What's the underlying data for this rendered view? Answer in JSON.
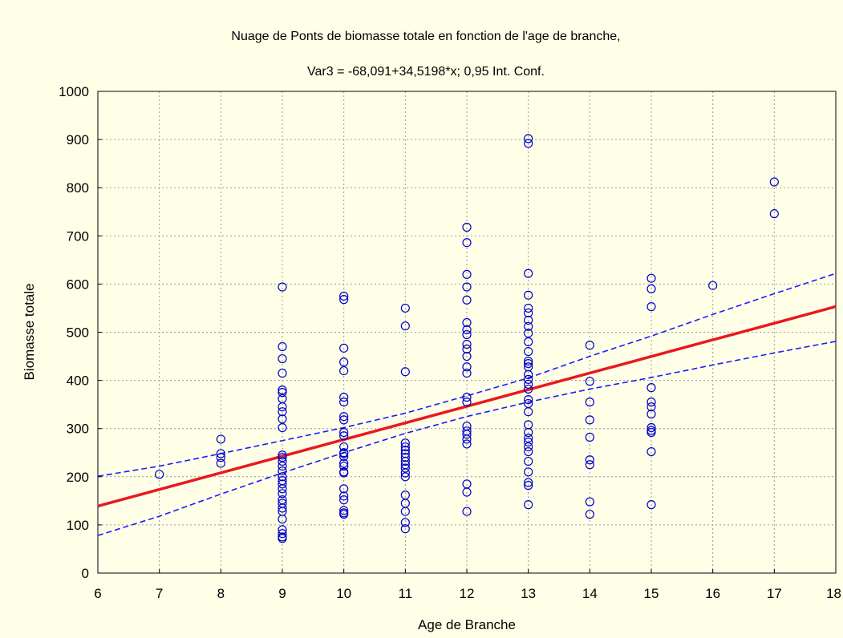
{
  "chart_data": {
    "type": "scatter",
    "title": "Nuage de Ponts de biomasse totale en fonction de l'age de branche,",
    "subtitle": "Var3 = -68,091+34,5198*x; 0,95 Int. Conf.",
    "xlabel": "Age de Branche",
    "ylabel": "Biomasse totale",
    "xlim": [
      6,
      18
    ],
    "ylim": [
      0,
      1000
    ],
    "x_ticks": [
      6,
      7,
      8,
      9,
      10,
      11,
      12,
      13,
      14,
      15,
      16,
      17,
      18
    ],
    "x_tick_labels": [
      "6",
      "7",
      "8",
      "9",
      "10",
      "11",
      "12",
      "13",
      "14",
      "15",
      "16",
      "17",
      "18"
    ],
    "y_ticks": [
      0,
      100,
      200,
      300,
      400,
      500,
      600,
      700,
      800,
      900,
      1000
    ],
    "y_tick_labels": [
      "0",
      "100",
      "200",
      "300",
      "400",
      "500",
      "600",
      "700",
      "800",
      "900",
      "1000"
    ],
    "grid": true,
    "colors": {
      "points": "#0000cc",
      "fit": "#e8191e",
      "ci": "#1a1aff",
      "background": "#ffffe8"
    },
    "regression": {
      "intercept": -68.091,
      "slope": 34.5198
    },
    "confidence_band": {
      "level": 0.95,
      "upper": [
        [
          6,
          201
        ],
        [
          7,
          222
        ],
        [
          8,
          248
        ],
        [
          9,
          275
        ],
        [
          10,
          302
        ],
        [
          11,
          332
        ],
        [
          12,
          368
        ],
        [
          13,
          405
        ],
        [
          14,
          450
        ],
        [
          15,
          492
        ],
        [
          16,
          537
        ],
        [
          17,
          580
        ],
        [
          18,
          622
        ]
      ],
      "lower": [
        [
          6,
          78
        ],
        [
          7,
          118
        ],
        [
          8,
          164
        ],
        [
          9,
          208
        ],
        [
          10,
          250
        ],
        [
          11,
          290
        ],
        [
          12,
          325
        ],
        [
          13,
          355
        ],
        [
          14,
          382
        ],
        [
          15,
          406
        ],
        [
          16,
          432
        ],
        [
          17,
          457
        ],
        [
          18,
          481
        ]
      ]
    },
    "points": [
      [
        7,
        205
      ],
      [
        8,
        278
      ],
      [
        8,
        248
      ],
      [
        8,
        240
      ],
      [
        8,
        228
      ],
      [
        9,
        594
      ],
      [
        9,
        470
      ],
      [
        9,
        445
      ],
      [
        9,
        415
      ],
      [
        9,
        380
      ],
      [
        9,
        375
      ],
      [
        9,
        362
      ],
      [
        9,
        345
      ],
      [
        9,
        335
      ],
      [
        9,
        320
      ],
      [
        9,
        302
      ],
      [
        9,
        245
      ],
      [
        9,
        240
      ],
      [
        9,
        232
      ],
      [
        9,
        222
      ],
      [
        9,
        212
      ],
      [
        9,
        200
      ],
      [
        9,
        192
      ],
      [
        9,
        185
      ],
      [
        9,
        175
      ],
      [
        9,
        165
      ],
      [
        9,
        152
      ],
      [
        9,
        145
      ],
      [
        9,
        135
      ],
      [
        9,
        128
      ],
      [
        9,
        112
      ],
      [
        9,
        90
      ],
      [
        9,
        82
      ],
      [
        9,
        75
      ],
      [
        9,
        72
      ],
      [
        10,
        575
      ],
      [
        10,
        568
      ],
      [
        10,
        467
      ],
      [
        10,
        438
      ],
      [
        10,
        420
      ],
      [
        10,
        365
      ],
      [
        10,
        355
      ],
      [
        10,
        325
      ],
      [
        10,
        318
      ],
      [
        10,
        292
      ],
      [
        10,
        285
      ],
      [
        10,
        262
      ],
      [
        10,
        250
      ],
      [
        10,
        248
      ],
      [
        10,
        242
      ],
      [
        10,
        228
      ],
      [
        10,
        222
      ],
      [
        10,
        210
      ],
      [
        10,
        208
      ],
      [
        10,
        175
      ],
      [
        10,
        160
      ],
      [
        10,
        152
      ],
      [
        10,
        130
      ],
      [
        10,
        125
      ],
      [
        10,
        122
      ],
      [
        11,
        550
      ],
      [
        11,
        513
      ],
      [
        11,
        418
      ],
      [
        11,
        270
      ],
      [
        11,
        262
      ],
      [
        11,
        255
      ],
      [
        11,
        248
      ],
      [
        11,
        240
      ],
      [
        11,
        232
      ],
      [
        11,
        225
      ],
      [
        11,
        218
      ],
      [
        11,
        208
      ],
      [
        11,
        200
      ],
      [
        11,
        162
      ],
      [
        11,
        145
      ],
      [
        11,
        128
      ],
      [
        11,
        105
      ],
      [
        11,
        92
      ],
      [
        12,
        718
      ],
      [
        12,
        686
      ],
      [
        12,
        620
      ],
      [
        12,
        594
      ],
      [
        12,
        567
      ],
      [
        12,
        520
      ],
      [
        12,
        505
      ],
      [
        12,
        495
      ],
      [
        12,
        475
      ],
      [
        12,
        465
      ],
      [
        12,
        450
      ],
      [
        12,
        428
      ],
      [
        12,
        415
      ],
      [
        12,
        365
      ],
      [
        12,
        355
      ],
      [
        12,
        305
      ],
      [
        12,
        295
      ],
      [
        12,
        288
      ],
      [
        12,
        278
      ],
      [
        12,
        268
      ],
      [
        12,
        185
      ],
      [
        12,
        168
      ],
      [
        12,
        128
      ],
      [
        13,
        902
      ],
      [
        13,
        892
      ],
      [
        13,
        622
      ],
      [
        13,
        577
      ],
      [
        13,
        550
      ],
      [
        13,
        540
      ],
      [
        13,
        525
      ],
      [
        13,
        512
      ],
      [
        13,
        498
      ],
      [
        13,
        480
      ],
      [
        13,
        460
      ],
      [
        13,
        440
      ],
      [
        13,
        435
      ],
      [
        13,
        428
      ],
      [
        13,
        412
      ],
      [
        13,
        402
      ],
      [
        13,
        392
      ],
      [
        13,
        382
      ],
      [
        13,
        360
      ],
      [
        13,
        352
      ],
      [
        13,
        335
      ],
      [
        13,
        308
      ],
      [
        13,
        292
      ],
      [
        13,
        280
      ],
      [
        13,
        272
      ],
      [
        13,
        262
      ],
      [
        13,
        252
      ],
      [
        13,
        232
      ],
      [
        13,
        210
      ],
      [
        13,
        188
      ],
      [
        13,
        182
      ],
      [
        13,
        142
      ],
      [
        14,
        473
      ],
      [
        14,
        398
      ],
      [
        14,
        355
      ],
      [
        14,
        318
      ],
      [
        14,
        282
      ],
      [
        14,
        235
      ],
      [
        14,
        225
      ],
      [
        14,
        148
      ],
      [
        14,
        122
      ],
      [
        15,
        612
      ],
      [
        15,
        590
      ],
      [
        15,
        553
      ],
      [
        15,
        385
      ],
      [
        15,
        355
      ],
      [
        15,
        345
      ],
      [
        15,
        330
      ],
      [
        15,
        302
      ],
      [
        15,
        296
      ],
      [
        15,
        292
      ],
      [
        15,
        252
      ],
      [
        15,
        142
      ],
      [
        16,
        597
      ],
      [
        17,
        812
      ],
      [
        17,
        746
      ]
    ]
  }
}
